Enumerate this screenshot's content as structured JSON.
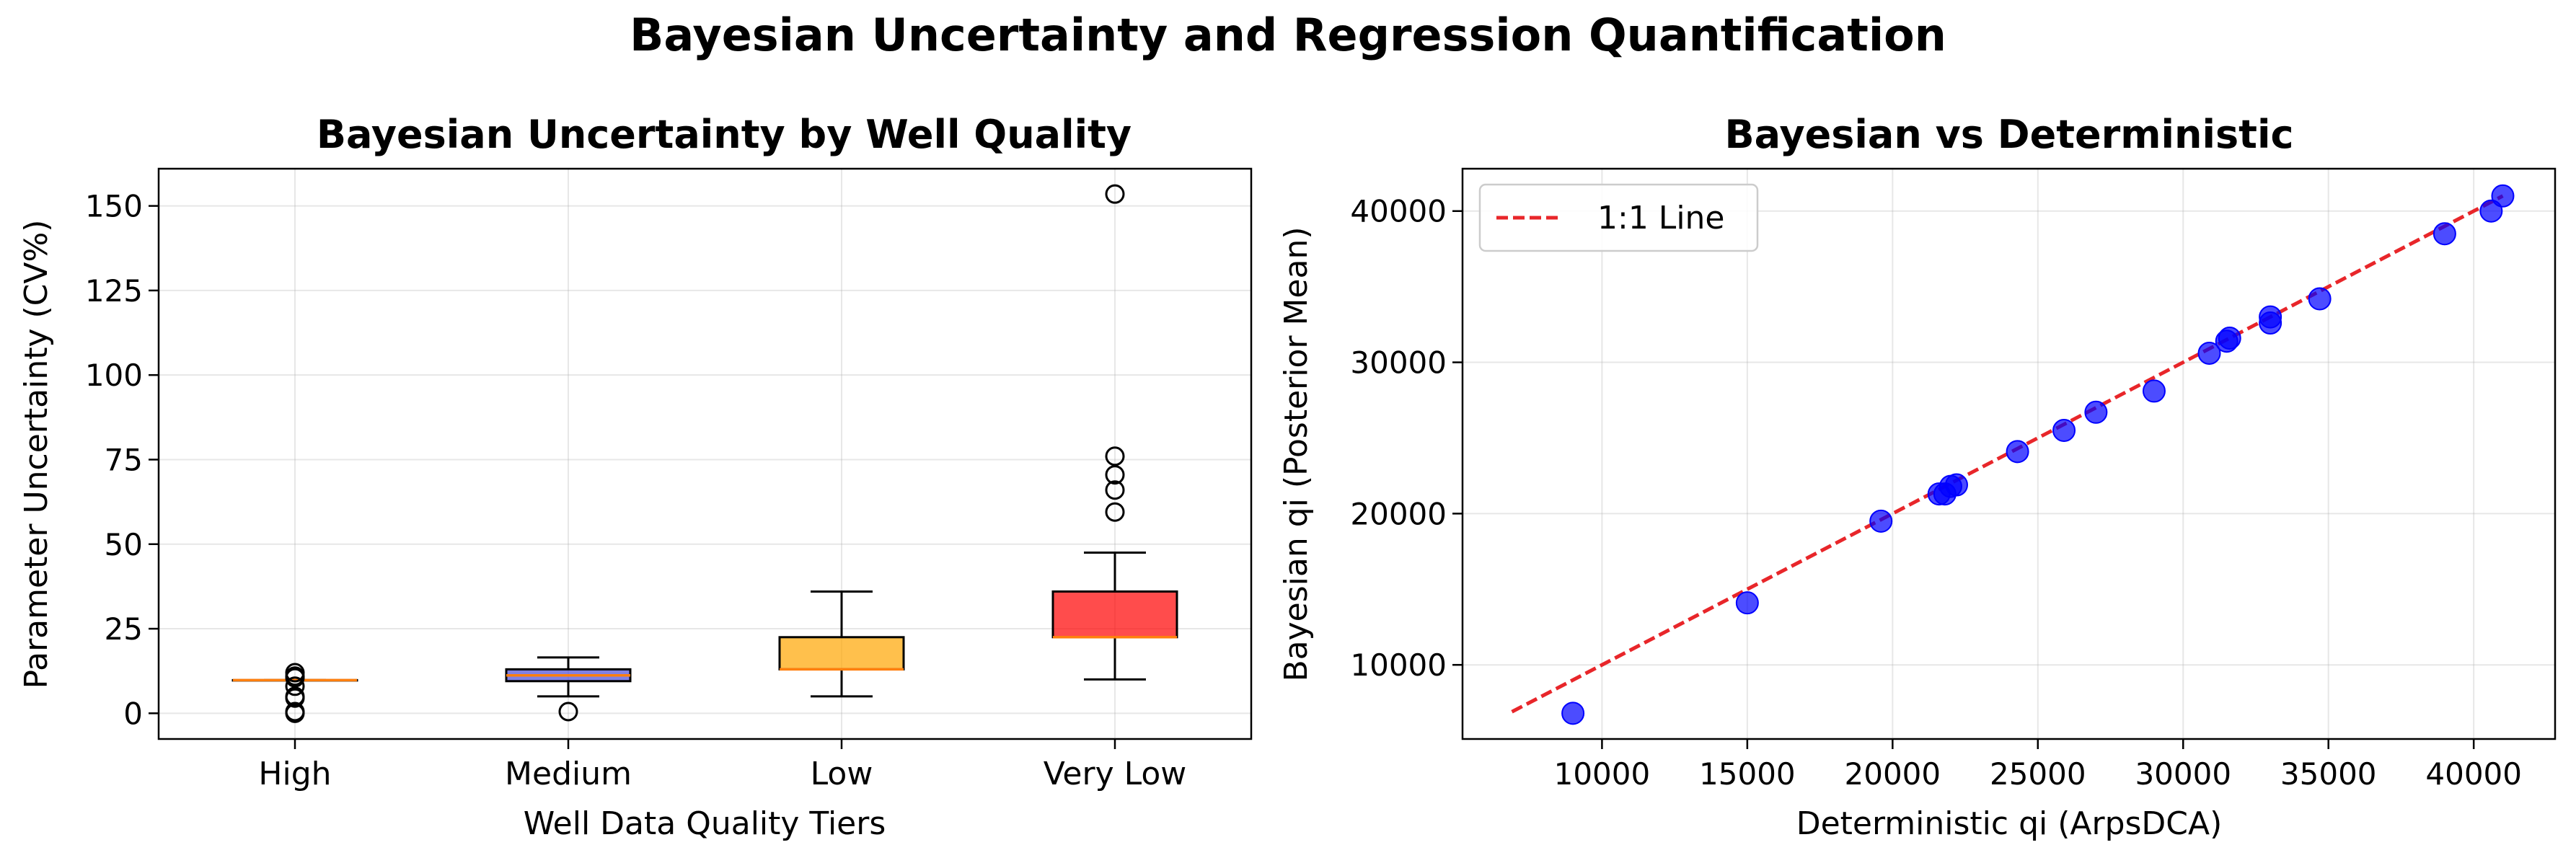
{
  "figure": {
    "suptitle": "Bayesian Uncertainty and Regression Quantification"
  },
  "chart_data": [
    {
      "type": "box",
      "title": "Bayesian Uncertainty by Well Quality",
      "xlabel": "Well Data Quality Tiers",
      "ylabel": "Parameter Uncertainty (CV%)",
      "ylim": [
        -7.6,
        161
      ],
      "yticks": [
        0,
        25,
        50,
        75,
        100,
        125,
        150
      ],
      "grid": true,
      "categories": [
        "High",
        "Medium",
        "Low",
        "Very Low"
      ],
      "boxes": [
        {
          "category": "High",
          "whisker_low": 9.8,
          "q1": 9.8,
          "median": 9.8,
          "q3": 9.8,
          "whisker_high": 9.8,
          "outliers": [
            12,
            11,
            10.5,
            8,
            5,
            4.5,
            0.5,
            0
          ],
          "fill": "#5b5bd6",
          "fill_opacity": 0.7
        },
        {
          "category": "Medium",
          "whisker_low": 5,
          "q1": 9.5,
          "median": 11.2,
          "q3": 13,
          "whisker_high": 16.5,
          "outliers": [
            0.5
          ],
          "fill": "#4a4ad8",
          "fill_opacity": 0.7
        },
        {
          "category": "Low",
          "whisker_low": 5,
          "q1": 13,
          "median": 13,
          "q3": 22.5,
          "whisker_high": 36,
          "outliers": [],
          "fill": "#ffa500",
          "fill_opacity": 0.7
        },
        {
          "category": "Very Low",
          "whisker_low": 10,
          "q1": 22.5,
          "median": 22.5,
          "q3": 36,
          "whisker_high": 47.5,
          "outliers": [
            153.5,
            76,
            70.5,
            66,
            59.5
          ],
          "fill": "#ff0000",
          "fill_opacity": 0.7
        }
      ],
      "median_color": "#ff7f0e"
    },
    {
      "type": "scatter",
      "title": "Bayesian vs Deterministic",
      "xlabel": "Deterministic qi (ArpsDCA)",
      "ylabel": "Bayesian qi (Posterior Mean)",
      "xlim": [
        5200,
        42800
      ],
      "ylim": [
        5100,
        42800
      ],
      "xticks": [
        10000,
        15000,
        20000,
        25000,
        30000,
        35000,
        40000
      ],
      "yticks": [
        10000,
        20000,
        30000,
        40000
      ],
      "grid": true,
      "legend": {
        "position": "top-left",
        "entries": [
          "1:1 Line"
        ]
      },
      "reference_line": {
        "name": "1:1 Line",
        "x": [
          6900,
          41000
        ],
        "y": [
          6900,
          41000
        ],
        "color": "#e8262a",
        "style": "dashed"
      },
      "series": [
        {
          "color": "#0000ff",
          "alpha": 0.7,
          "points": [
            [
              9000,
              6800
            ],
            [
              15000,
              14100
            ],
            [
              19600,
              19500
            ],
            [
              21600,
              21300
            ],
            [
              21800,
              21300
            ],
            [
              22000,
              21800
            ],
            [
              22200,
              21900
            ],
            [
              24300,
              24100
            ],
            [
              25900,
              25500
            ],
            [
              27000,
              26700
            ],
            [
              29000,
              28100
            ],
            [
              30900,
              30600
            ],
            [
              31500,
              31400
            ],
            [
              31600,
              31600
            ],
            [
              33000,
              32600
            ],
            [
              33000,
              33000
            ],
            [
              34700,
              34200
            ],
            [
              39000,
              38500
            ],
            [
              40600,
              40000
            ],
            [
              41000,
              41000
            ]
          ]
        }
      ]
    }
  ]
}
